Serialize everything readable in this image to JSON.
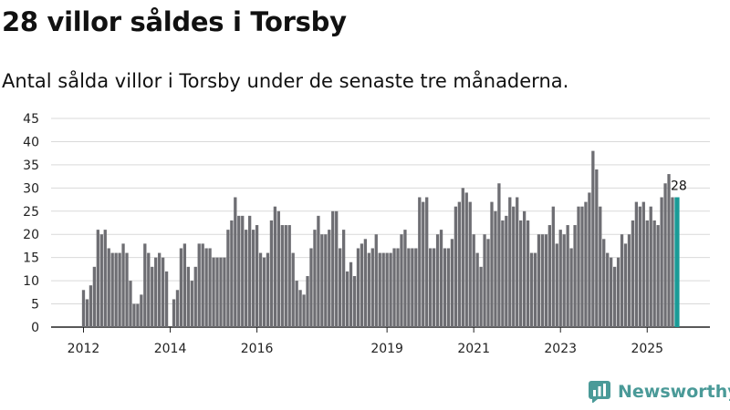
{
  "header": {
    "title": "28 villor såldes i Torsby",
    "subtitle": "Antal sålda villor i Torsby under de senaste tre månaderna."
  },
  "brand": {
    "name": "Newsworthy"
  },
  "colors": {
    "bar": "#6e6e73",
    "highlight": "#1a9b97",
    "grid": "#d9d9d9",
    "axis": "#222222",
    "logo": "#4a9a98"
  },
  "chart_data": {
    "type": "bar",
    "title": "28 villor såldes i Torsby",
    "subtitle": "Antal sålda villor i Torsby under de senaste tre månaderna.",
    "xlabel": "",
    "ylabel": "",
    "ylim": [
      0,
      45
    ],
    "yticks": [
      0,
      5,
      10,
      15,
      20,
      25,
      30,
      35,
      40,
      45
    ],
    "grid": true,
    "start": "2012-01",
    "xtick_labels": [
      {
        "label": "2012",
        "index": 0
      },
      {
        "label": "2014",
        "index": 24
      },
      {
        "label": "2016",
        "index": 48
      },
      {
        "label": "2019",
        "index": 84
      },
      {
        "label": "2021",
        "index": 108
      },
      {
        "label": "2023",
        "index": 132
      },
      {
        "label": "2025",
        "index": 156
      }
    ],
    "values": [
      8,
      6,
      9,
      13,
      21,
      20,
      21,
      17,
      16,
      16,
      16,
      18,
      16,
      10,
      5,
      5,
      7,
      18,
      16,
      13,
      15,
      16,
      15,
      12,
      null,
      6,
      8,
      17,
      18,
      13,
      10,
      13,
      18,
      18,
      17,
      17,
      15,
      15,
      15,
      15,
      21,
      23,
      28,
      24,
      24,
      21,
      24,
      21,
      22,
      16,
      15,
      16,
      23,
      26,
      25,
      22,
      22,
      22,
      16,
      10,
      8,
      7,
      11,
      17,
      21,
      24,
      20,
      20,
      21,
      25,
      25,
      17,
      21,
      12,
      14,
      11,
      17,
      18,
      19,
      16,
      17,
      20,
      16,
      16,
      16,
      16,
      17,
      17,
      20,
      21,
      17,
      17,
      17,
      28,
      27,
      28,
      17,
      17,
      20,
      21,
      17,
      17,
      19,
      26,
      27,
      30,
      29,
      27,
      20,
      16,
      13,
      20,
      19,
      27,
      25,
      31,
      23,
      24,
      28,
      26,
      28,
      23,
      25,
      23,
      16,
      16,
      20,
      20,
      20,
      22,
      26,
      18,
      21,
      20,
      22,
      17,
      22,
      26,
      26,
      27,
      29,
      38,
      34,
      26,
      19,
      16,
      15,
      13,
      15,
      20,
      18,
      20,
      23,
      27,
      26,
      27,
      23,
      26,
      23,
      22,
      28,
      31,
      33,
      28,
      28
    ],
    "highlight_last": true,
    "annotations": [
      {
        "text": "28",
        "index": 165,
        "value": 28
      }
    ]
  }
}
